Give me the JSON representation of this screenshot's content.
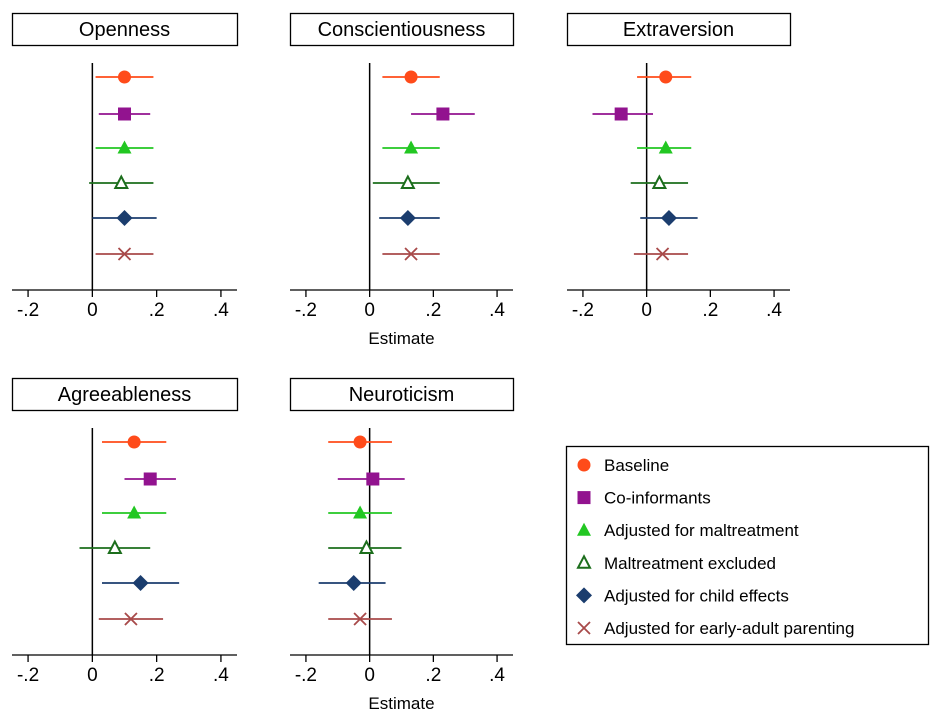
{
  "chart_data": {
    "type": "scatter",
    "style": "coefficient plot: point estimates with horizontal confidence-interval bars",
    "xlabel": "Estimate",
    "xlim": [
      -0.25,
      0.45
    ],
    "x_ticks": [
      -0.2,
      0,
      0.2,
      0.4
    ],
    "x_tick_labels": [
      "-.2",
      "0",
      ".2",
      ".4"
    ],
    "reference_line_x": 0,
    "grid": false,
    "legend_position": "bottom-right",
    "series": [
      {
        "name": "Baseline",
        "marker": "circle",
        "color": "#ff4b1a"
      },
      {
        "name": "Co-informants",
        "marker": "square",
        "color": "#92138f"
      },
      {
        "name": "Adjusted for maltreatment",
        "marker": "triangle",
        "color": "#22c722"
      },
      {
        "name": "Maltreatment excluded",
        "marker": "triangle-open",
        "color": "#1c6e1c"
      },
      {
        "name": "Adjusted for child effects",
        "marker": "diamond",
        "color": "#1b3d6e"
      },
      {
        "name": "Adjusted for early-adult parenting",
        "marker": "x",
        "color": "#a84a4a"
      }
    ],
    "panels": [
      {
        "title": "Openness",
        "show_xlabel": false,
        "estimates": [
          0.1,
          0.1,
          0.1,
          0.09,
          0.1,
          0.1
        ],
        "ci_low": [
          0.01,
          0.02,
          0.01,
          -0.01,
          0.0,
          0.01
        ],
        "ci_high": [
          0.19,
          0.18,
          0.19,
          0.19,
          0.2,
          0.19
        ]
      },
      {
        "title": "Conscientiousness",
        "show_xlabel": true,
        "estimates": [
          0.13,
          0.23,
          0.13,
          0.12,
          0.12,
          0.13
        ],
        "ci_low": [
          0.04,
          0.13,
          0.04,
          0.01,
          0.03,
          0.04
        ],
        "ci_high": [
          0.22,
          0.33,
          0.22,
          0.22,
          0.22,
          0.22
        ]
      },
      {
        "title": "Extraversion",
        "show_xlabel": false,
        "estimates": [
          0.06,
          -0.08,
          0.06,
          0.04,
          0.07,
          0.05
        ],
        "ci_low": [
          -0.03,
          -0.17,
          -0.03,
          -0.05,
          -0.02,
          -0.04
        ],
        "ci_high": [
          0.14,
          0.02,
          0.14,
          0.13,
          0.16,
          0.13
        ]
      },
      {
        "title": "Agreeableness",
        "show_xlabel": false,
        "estimates": [
          0.13,
          0.18,
          0.13,
          0.07,
          0.15,
          0.12
        ],
        "ci_low": [
          0.03,
          0.1,
          0.03,
          -0.04,
          0.03,
          0.02
        ],
        "ci_high": [
          0.23,
          0.26,
          0.23,
          0.18,
          0.27,
          0.22
        ]
      },
      {
        "title": "Neuroticism",
        "show_xlabel": true,
        "estimates": [
          -0.03,
          0.01,
          -0.03,
          -0.01,
          -0.05,
          -0.03
        ],
        "ci_low": [
          -0.13,
          -0.1,
          -0.13,
          -0.13,
          -0.16,
          -0.13
        ],
        "ci_high": [
          0.07,
          0.11,
          0.07,
          0.1,
          0.05,
          0.07
        ]
      }
    ]
  }
}
